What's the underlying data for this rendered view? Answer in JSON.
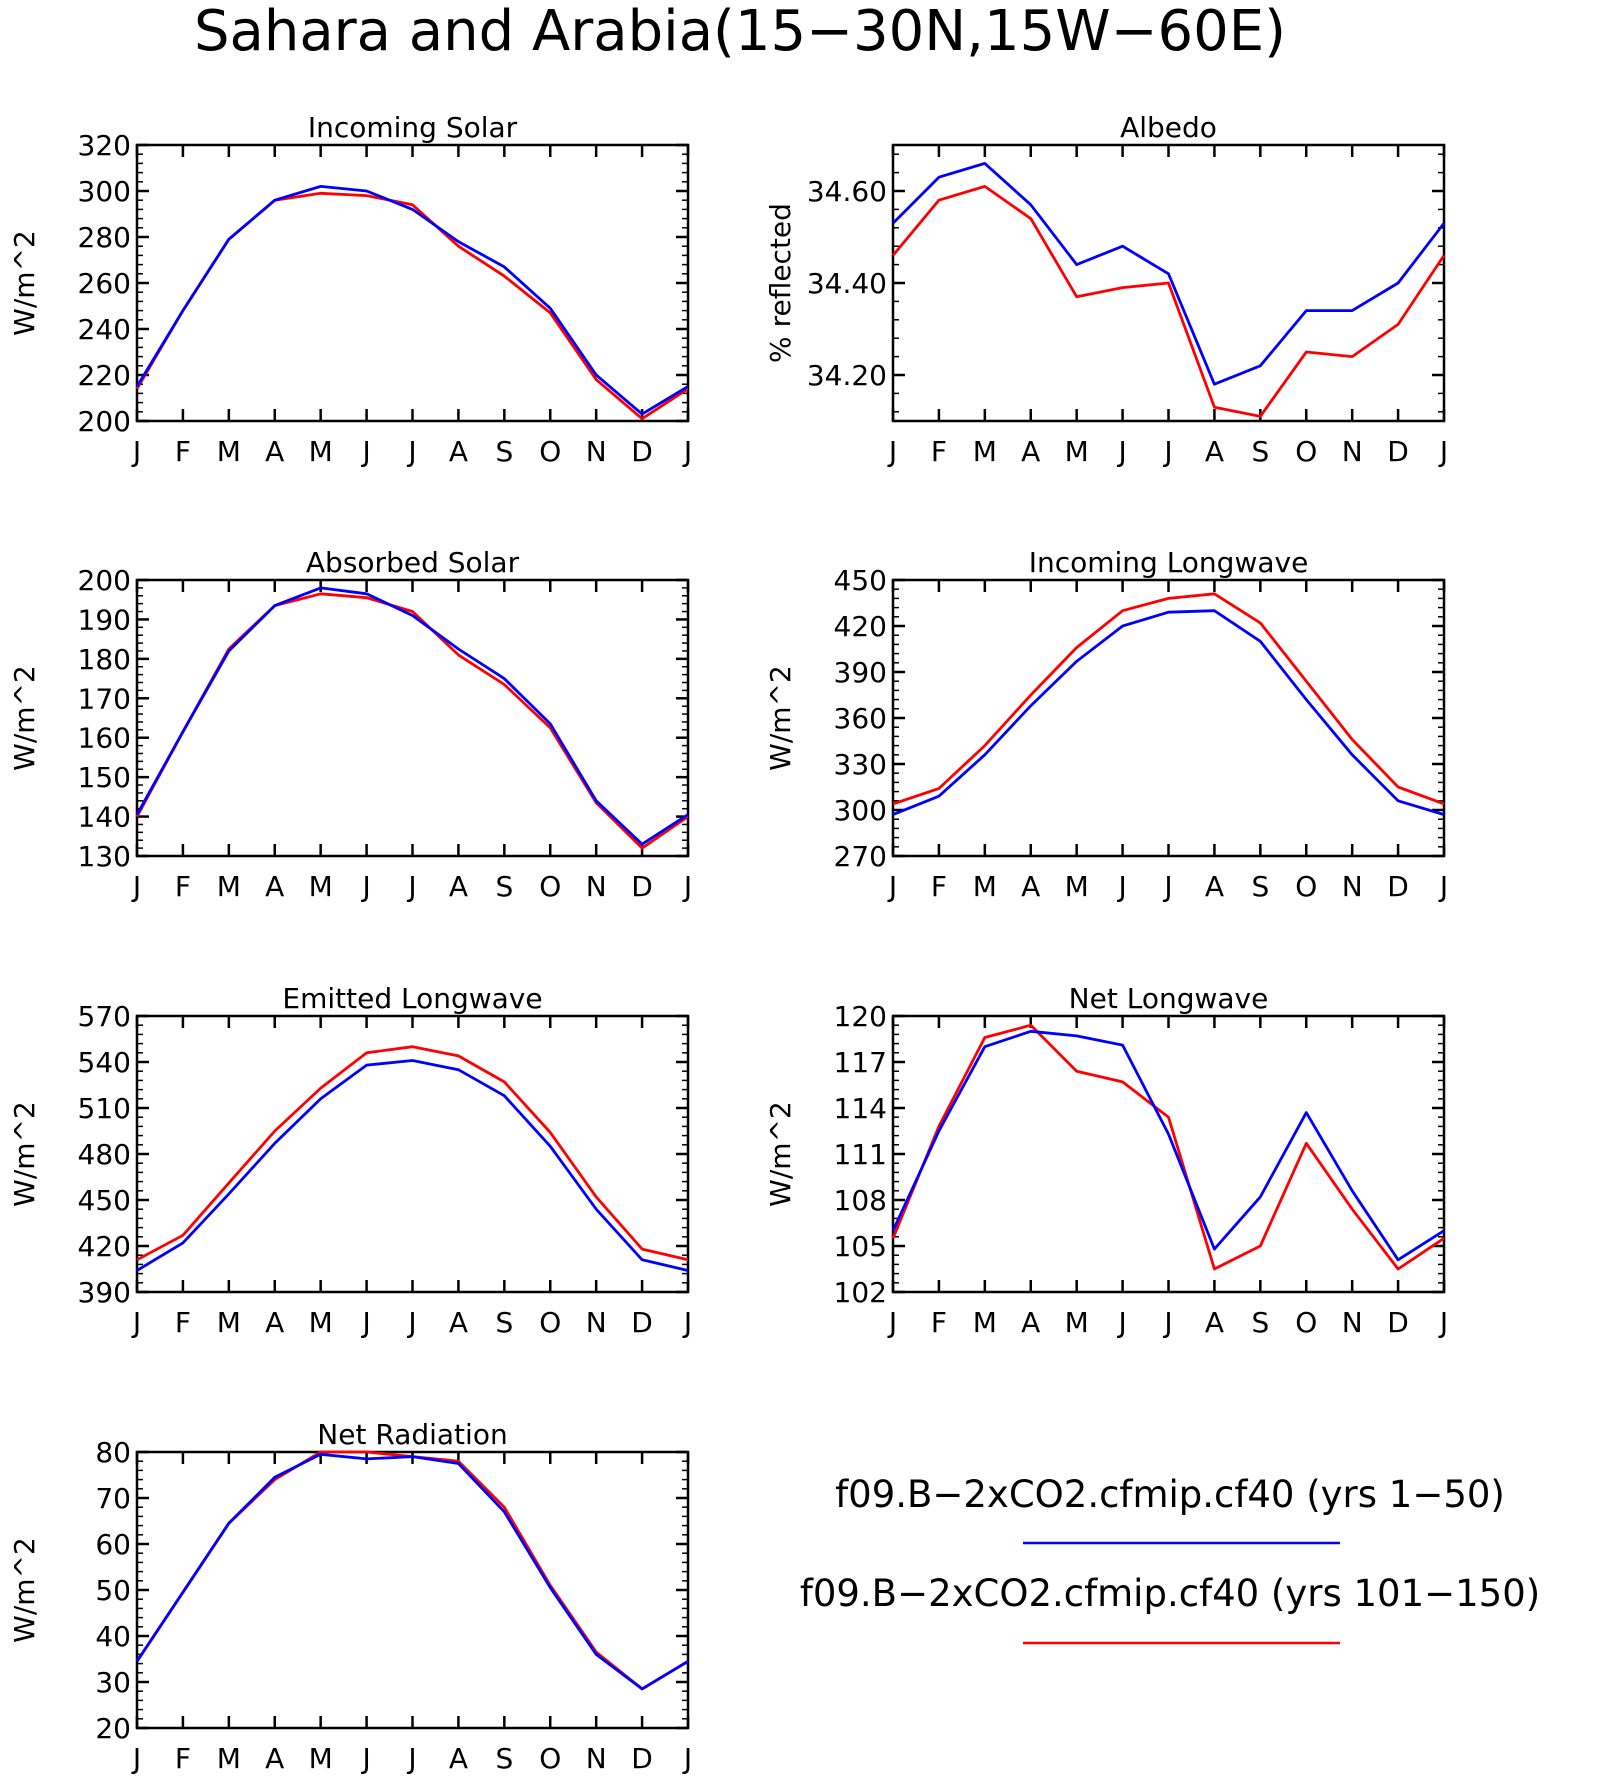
{
  "page": {
    "title": "Sahara and Arabia(15−30N,15W−60E)"
  },
  "colors": {
    "series_1": "#0000ff",
    "series_2": "#ff0000",
    "axis": "#000000",
    "background": "#ffffff"
  },
  "legend": {
    "items": [
      {
        "label": "f09.B−2xCO2.cfmip.cf40 (yrs 1−50)",
        "color": "#0000ff"
      },
      {
        "label": "f09.B−2xCO2.cfmip.cf40 (yrs 101−150)",
        "color": "#ff0000"
      }
    ]
  },
  "chart_data": [
    {
      "type": "line",
      "title": "Incoming Solar",
      "ylabel": "W/m^2",
      "x": [
        "J",
        "F",
        "M",
        "A",
        "M",
        "J",
        "J",
        "A",
        "S",
        "O",
        "N",
        "D",
        "J"
      ],
      "ylim": [
        200,
        320
      ],
      "yticks": [
        "200",
        "220",
        "240",
        "260",
        "280",
        "300",
        "320"
      ],
      "series": [
        {
          "values": [
            215,
            248,
            279,
            296,
            302,
            300,
            292,
            278,
            267,
            249,
            220,
            203,
            215
          ]
        },
        {
          "values": [
            214,
            248,
            279,
            296,
            299,
            298,
            294,
            276,
            263,
            247,
            218,
            201,
            214
          ]
        }
      ]
    },
    {
      "type": "line",
      "title": "Albedo",
      "ylabel": "% reflected",
      "x": [
        "J",
        "F",
        "M",
        "A",
        "M",
        "J",
        "J",
        "A",
        "S",
        "O",
        "N",
        "D",
        "J"
      ],
      "ylim": [
        34.1,
        34.7
      ],
      "yticks": [
        "34.20",
        "34.40",
        "34.60"
      ],
      "series": [
        {
          "values": [
            34.53,
            34.63,
            34.66,
            34.57,
            34.44,
            34.48,
            34.42,
            34.18,
            34.22,
            34.34,
            34.34,
            34.4,
            34.53
          ]
        },
        {
          "values": [
            34.46,
            34.58,
            34.61,
            34.54,
            34.37,
            34.39,
            34.4,
            34.13,
            34.11,
            34.25,
            34.24,
            34.31,
            34.46
          ]
        }
      ]
    },
    {
      "type": "line",
      "title": "Absorbed Solar",
      "ylabel": "W/m^2",
      "x": [
        "J",
        "F",
        "M",
        "A",
        "M",
        "J",
        "J",
        "A",
        "S",
        "O",
        "N",
        "D",
        "J"
      ],
      "ylim": [
        130,
        200
      ],
      "yticks": [
        "130",
        "140",
        "150",
        "160",
        "170",
        "180",
        "190",
        "200"
      ],
      "series": [
        {
          "values": [
            140.5,
            161.5,
            182,
            193.5,
            198,
            196.5,
            191,
            182.5,
            175,
            163.5,
            144,
            133,
            140.5
          ]
        },
        {
          "values": [
            140,
            161.5,
            182.5,
            193.5,
            196.5,
            195.5,
            192,
            181,
            173.5,
            162.5,
            143.5,
            132,
            140
          ]
        }
      ]
    },
    {
      "type": "line",
      "title": "Incoming Longwave",
      "ylabel": "W/m^2",
      "x": [
        "J",
        "F",
        "M",
        "A",
        "M",
        "J",
        "J",
        "A",
        "S",
        "O",
        "N",
        "D",
        "J"
      ],
      "ylim": [
        270,
        450
      ],
      "yticks": [
        "270",
        "300",
        "330",
        "360",
        "390",
        "420",
        "450"
      ],
      "series": [
        {
          "values": [
            297,
            309,
            336,
            368,
            397,
            420,
            429,
            430,
            410,
            372,
            336,
            306,
            297
          ]
        },
        {
          "values": [
            304,
            314,
            342,
            375,
            406,
            430,
            438,
            441,
            422,
            384,
            346,
            315,
            304
          ]
        }
      ]
    },
    {
      "type": "line",
      "title": "Emitted Longwave",
      "ylabel": "W/m^2",
      "x": [
        "J",
        "F",
        "M",
        "A",
        "M",
        "J",
        "J",
        "A",
        "S",
        "O",
        "N",
        "D",
        "J"
      ],
      "ylim": [
        390,
        570
      ],
      "yticks": [
        "390",
        "420",
        "450",
        "480",
        "510",
        "540",
        "570"
      ],
      "series": [
        {
          "values": [
            404,
            422,
            454,
            487,
            516,
            538,
            541,
            535,
            518,
            485,
            444,
            411,
            404
          ]
        },
        {
          "values": [
            411,
            427,
            461,
            495,
            523,
            546,
            550,
            544,
            527,
            494,
            452,
            418,
            411
          ]
        }
      ]
    },
    {
      "type": "line",
      "title": "Net Longwave",
      "ylabel": "W/m^2",
      "x": [
        "J",
        "F",
        "M",
        "A",
        "M",
        "J",
        "J",
        "A",
        "S",
        "O",
        "N",
        "D",
        "J"
      ],
      "ylim": [
        102,
        120
      ],
      "yticks": [
        "102",
        "105",
        "108",
        "111",
        "114",
        "117",
        "120"
      ],
      "series": [
        {
          "values": [
            106,
            112.5,
            118,
            119,
            118.7,
            118.1,
            112.3,
            104.8,
            108.2,
            113.7,
            108.6,
            104.1,
            106
          ]
        },
        {
          "values": [
            105.5,
            112.8,
            118.6,
            119.4,
            116.4,
            115.7,
            113.4,
            103.5,
            105,
            111.7,
            107.4,
            103.5,
            105.5
          ]
        }
      ]
    },
    {
      "type": "line",
      "title": "Net Radiation",
      "ylabel": "W/m^2",
      "x": [
        "J",
        "F",
        "M",
        "A",
        "M",
        "J",
        "J",
        "A",
        "S",
        "O",
        "N",
        "D",
        "J"
      ],
      "ylim": [
        20,
        80
      ],
      "yticks": [
        "20",
        "30",
        "40",
        "50",
        "60",
        "70",
        "80"
      ],
      "series": [
        {
          "values": [
            34.5,
            49.5,
            64.5,
            74.5,
            79.5,
            78.5,
            79,
            77.5,
            67,
            50.5,
            36,
            28.5,
            34.5
          ]
        },
        {
          "values": [
            34.5,
            49.5,
            64.5,
            74,
            80,
            80,
            79,
            78,
            68,
            51,
            36.5,
            28.5,
            34.5
          ]
        }
      ]
    }
  ]
}
